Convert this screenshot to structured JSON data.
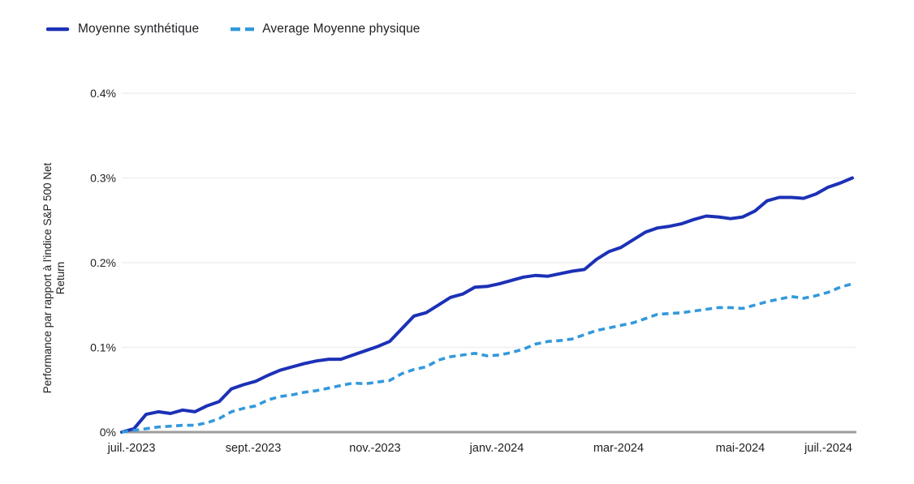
{
  "chart_data": {
    "type": "line",
    "title": "",
    "xlabel": "",
    "ylabel": "Performance par rapport à l'indice S&P 500 Net Return",
    "ylabel_lines": [
      "Performance par rapport à l'indice S&P 500 Net",
      "Return"
    ],
    "x_unit": "months since juil. 2023",
    "x_range": [
      0,
      12
    ],
    "x_tick_positions": [
      0,
      2,
      4,
      6,
      8,
      10,
      12
    ],
    "x_tick_labels": [
      "juil.-2023",
      "sept.-2023",
      "nov.-2023",
      "janv.-2024",
      "mar-2024",
      "mai-2024",
      "juil.-2024"
    ],
    "y_ticks": [
      0,
      0.1,
      0.2,
      0.3,
      0.4
    ],
    "y_tick_labels": [
      "0%",
      "0.1%",
      "0.2%",
      "0.3%",
      "0.4%"
    ],
    "ylim": [
      0,
      0.4
    ],
    "grid": "horizontal-only",
    "grid_color": "#efefef",
    "axis_line_color": "#9c9c9c",
    "text_color": "#1f1f1f",
    "legend_position": "top-left",
    "series": [
      {
        "name": "Moyenne synthétique",
        "color": "#1c31b6",
        "style": "solid",
        "values_pct": [
          0.0,
          0.004,
          0.021,
          0.024,
          0.022,
          0.026,
          0.024,
          0.031,
          0.036,
          0.051,
          0.056,
          0.06,
          0.067,
          0.073,
          0.077,
          0.081,
          0.084,
          0.086,
          0.086,
          0.091,
          0.096,
          0.101,
          0.107,
          0.122,
          0.137,
          0.141,
          0.15,
          0.159,
          0.163,
          0.171,
          0.172,
          0.175,
          0.179,
          0.183,
          0.185,
          0.184,
          0.187,
          0.19,
          0.192,
          0.204,
          0.213,
          0.218,
          0.227,
          0.236,
          0.241,
          0.243,
          0.246,
          0.251,
          0.255,
          0.254,
          0.252,
          0.254,
          0.261,
          0.273,
          0.277,
          0.277,
          0.276,
          0.281,
          0.289,
          0.294,
          0.3
        ]
      },
      {
        "name": "Average Moyenne physique",
        "color": "#3399dc",
        "style": "dashed",
        "values_pct": [
          0.0,
          0.002,
          0.004,
          0.006,
          0.007,
          0.008,
          0.008,
          0.011,
          0.016,
          0.024,
          0.028,
          0.031,
          0.038,
          0.042,
          0.044,
          0.047,
          0.049,
          0.052,
          0.055,
          0.058,
          0.057,
          0.059,
          0.061,
          0.069,
          0.074,
          0.077,
          0.085,
          0.089,
          0.091,
          0.093,
          0.09,
          0.091,
          0.094,
          0.098,
          0.104,
          0.107,
          0.108,
          0.11,
          0.115,
          0.12,
          0.123,
          0.126,
          0.129,
          0.134,
          0.139,
          0.14,
          0.141,
          0.143,
          0.145,
          0.147,
          0.147,
          0.146,
          0.15,
          0.154,
          0.157,
          0.16,
          0.158,
          0.161,
          0.165,
          0.171,
          0.175
        ]
      }
    ]
  }
}
